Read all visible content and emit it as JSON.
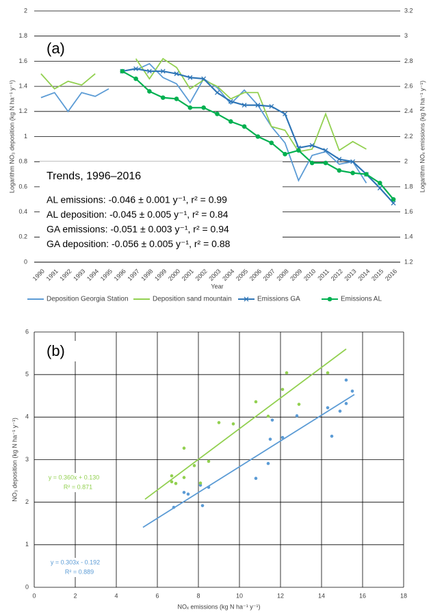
{
  "chart_data": [
    {
      "type": "line",
      "panel_label": "(a)",
      "x_label": "Year",
      "y_label": "Logarithm NO₃ deposition (kg N ha⁻¹ y⁻¹)",
      "y2_label": "Logarithm NOₓ emissions (kg N ha⁻¹ y⁻¹)",
      "annotation_title": "Trends, 1996–2016",
      "annotations": [
        "AL emissions: -0.046 ± 0.001 y⁻¹, r² = 0.99",
        "AL deposition: -0.045 ± 0.005 y⁻¹, r² = 0.84",
        "GA emissions: -0.051 ± 0.003 y⁻¹, r² = 0.94",
        "GA deposition: -0.056 ± 0.005 y⁻¹, r² = 0.88"
      ],
      "categories": [
        "1990",
        "1991",
        "1992",
        "1993",
        "1994",
        "1995",
        "1996",
        "1997",
        "1998",
        "1999",
        "2000",
        "2001",
        "2002",
        "2003",
        "2004",
        "2005",
        "2006",
        "2007",
        "2008",
        "2009",
        "2010",
        "2011",
        "2012",
        "2013",
        "2014",
        "2015",
        "2016"
      ],
      "ylim": [
        0,
        2
      ],
      "yticks": [
        0,
        0.2,
        0.4,
        0.6,
        0.8,
        1,
        1.2,
        1.4,
        1.6,
        1.8,
        2
      ],
      "y2lim": [
        1.2,
        3.2
      ],
      "y2ticks": [
        1.2,
        1.4,
        1.6,
        1.8,
        2,
        2.2,
        2.4,
        2.6,
        2.8,
        3,
        3.2
      ],
      "grid": true,
      "legend": "bottom",
      "series": [
        {
          "name": "Deposition Georgia Station",
          "color": "#5b9bd5",
          "marker": "none",
          "values": [
            1.31,
            1.35,
            1.2,
            1.35,
            1.32,
            1.38,
            null,
            1.53,
            1.58,
            1.47,
            1.42,
            1.27,
            1.46,
            1.39,
            1.26,
            1.37,
            1.25,
            1.08,
            0.95,
            0.65,
            0.85,
            0.88,
            0.78,
            0.8,
            0.63,
            null,
            null
          ]
        },
        {
          "name": "Deposition sand mountain",
          "color": "#92d050",
          "marker": "none",
          "values": [
            1.5,
            1.38,
            1.44,
            1.41,
            1.5,
            null,
            null,
            1.62,
            1.46,
            1.62,
            1.55,
            1.38,
            1.45,
            1.4,
            1.3,
            1.35,
            1.35,
            1.08,
            1.05,
            0.88,
            0.9,
            1.18,
            0.89,
            0.96,
            0.9,
            null,
            null
          ]
        },
        {
          "name": "Emissions GA",
          "color": "#2e75b6",
          "marker": "x",
          "axis": "y2",
          "values": [
            null,
            null,
            null,
            null,
            null,
            null,
            2.72,
            2.74,
            2.72,
            2.72,
            2.7,
            2.67,
            2.66,
            2.55,
            2.48,
            2.45,
            2.45,
            2.44,
            2.38,
            2.11,
            2.13,
            2.09,
            2.02,
            2.0,
            1.9,
            1.79,
            1.67
          ]
        },
        {
          "name": "Emissions AL",
          "color": "#00b050",
          "marker": "circle",
          "axis": "y2",
          "values": [
            null,
            null,
            null,
            null,
            null,
            null,
            2.72,
            2.66,
            2.56,
            2.51,
            2.5,
            2.43,
            2.43,
            2.38,
            2.32,
            2.28,
            2.2,
            2.15,
            2.06,
            2.09,
            1.99,
            1.99,
            1.93,
            1.91,
            1.9,
            1.83,
            1.7
          ]
        }
      ]
    },
    {
      "type": "scatter",
      "panel_label": "(b)",
      "x_label": "NOₓ emissions (kg N ha⁻¹ y⁻¹)",
      "y_label": "NO₃ deposition (kg N ha⁻¹ y⁻¹)",
      "xlim": [
        0,
        18
      ],
      "xticks": [
        0,
        2,
        4,
        6,
        8,
        10,
        12,
        14,
        16,
        18
      ],
      "ylim": [
        0,
        6
      ],
      "yticks": [
        0,
        1,
        2,
        3,
        4,
        5,
        6
      ],
      "grid": true,
      "series": [
        {
          "color": "#5b9bd5",
          "x": [
            6.8,
            7.3,
            7.5,
            8.2,
            8.1,
            8.5,
            10.8,
            11.4,
            11.5,
            11.6,
            12.1,
            12.8,
            14.3,
            14.5,
            14.9,
            15.2,
            15.2,
            15.5
          ],
          "values": [
            1.88,
            2.23,
            2.19,
            1.92,
            2.4,
            2.35,
            2.56,
            2.91,
            3.48,
            3.93,
            3.52,
            4.03,
            4.22,
            3.55,
            4.14,
            4.32,
            4.87,
            4.61
          ],
          "fit": {
            "label": "y = 0.303x - 0.192",
            "r2_label": "R² = 0.889",
            "x": [
              5.3,
              15.6
            ],
            "values": [
              1.41,
              4.53
            ]
          }
        },
        {
          "color": "#92d050",
          "x": [
            6.7,
            6.7,
            6.9,
            7.3,
            7.3,
            7.8,
            8.1,
            8.5,
            9.0,
            9.7,
            10.8,
            11.4,
            12.1,
            12.3,
            12.9,
            14.3
          ],
          "values": [
            2.48,
            2.62,
            2.44,
            2.58,
            3.27,
            2.86,
            2.45,
            2.96,
            3.87,
            3.84,
            4.36,
            4.02,
            4.65,
            5.04,
            4.3,
            5.04
          ],
          "fit": {
            "label": "y = 0.360x + 0.130",
            "r2_label": "R² = 0.871",
            "x": [
              5.4,
              15.2
            ],
            "values": [
              2.07,
              5.6
            ]
          }
        }
      ]
    }
  ]
}
